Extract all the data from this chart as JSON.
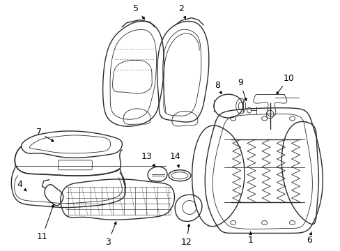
{
  "bg_color": "#ffffff",
  "line_color": "#2a2a2a",
  "label_color": "#000000",
  "figsize": [
    4.89,
    3.6
  ],
  "dpi": 100,
  "lw_main": 1.0,
  "lw_thin": 0.6,
  "lw_inner": 0.5,
  "label_fontsize": 9.0
}
